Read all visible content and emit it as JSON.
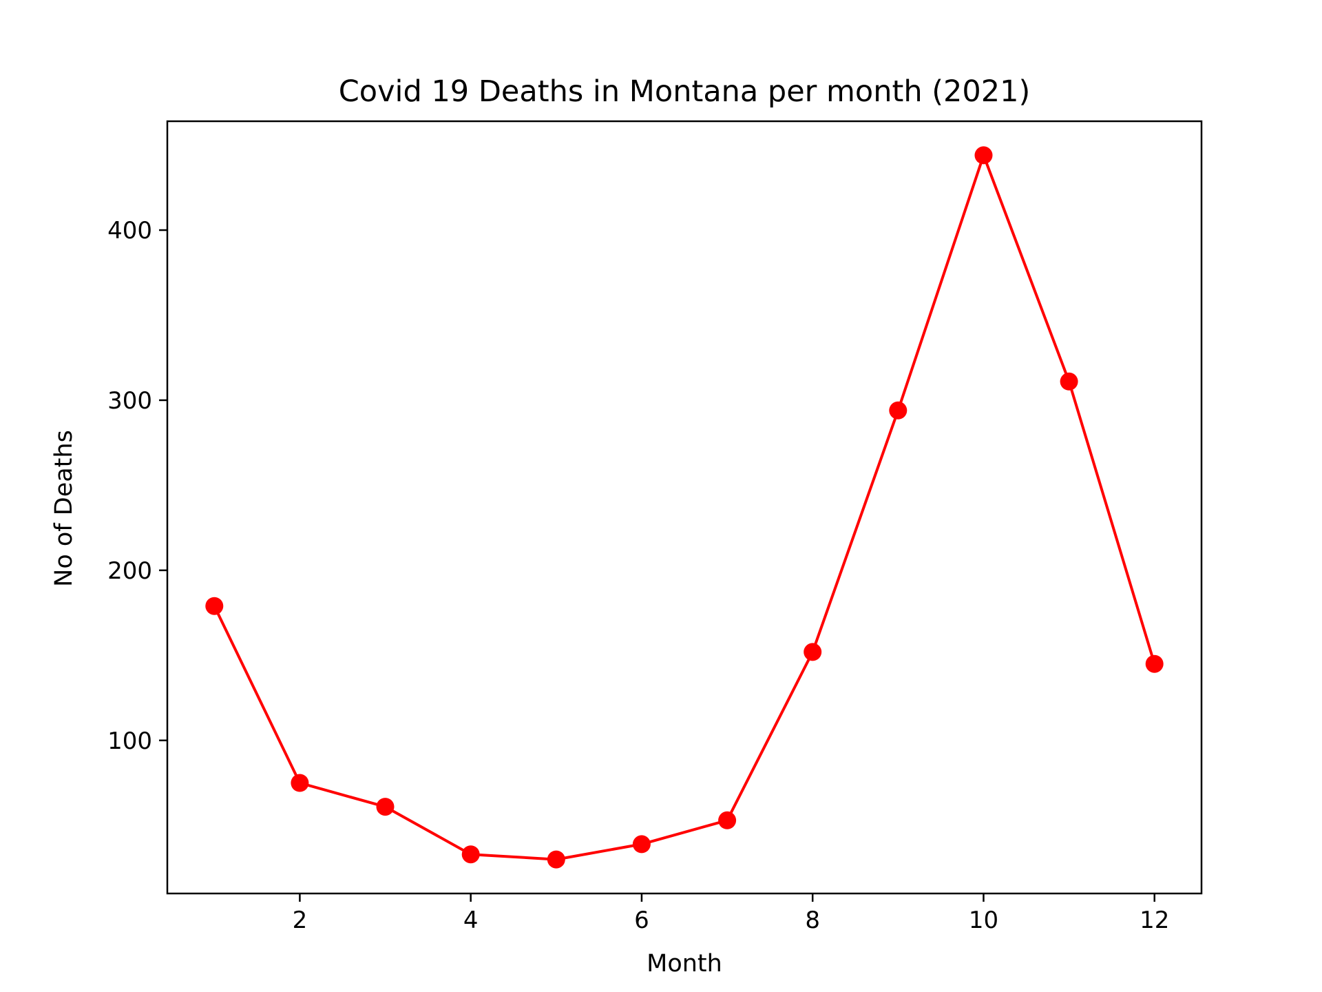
{
  "chart_data": {
    "type": "line",
    "title": "Covid 19 Deaths in Montana per month (2021)",
    "xlabel": "Month",
    "ylabel": "No of Deaths",
    "x": [
      1,
      2,
      3,
      4,
      5,
      6,
      7,
      8,
      9,
      10,
      11,
      12
    ],
    "y": [
      179,
      75,
      61,
      33,
      30,
      39,
      53,
      152,
      294,
      444,
      311,
      145
    ],
    "xlim": [
      0.45,
      12.55
    ],
    "ylim": [
      10,
      464
    ],
    "xticks": [
      2,
      4,
      6,
      8,
      10,
      12
    ],
    "yticks": [
      100,
      200,
      300,
      400
    ],
    "grid": false,
    "line_color": "#ff0000",
    "marker": "circle"
  }
}
